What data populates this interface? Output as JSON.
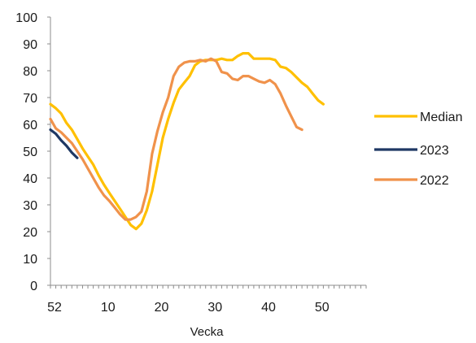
{
  "chart_data": {
    "type": "line",
    "title": "",
    "xlabel": "Vecka",
    "ylabel": "",
    "ylim": [
      0,
      100
    ],
    "yticks": [
      0,
      10,
      20,
      30,
      40,
      50,
      60,
      70,
      80,
      90,
      100
    ],
    "x_tick_labels": [
      "52",
      "10",
      "20",
      "30",
      "40",
      "50"
    ],
    "x_axis_note": "week index 0 = week 52, then weeks 1-52",
    "grid": false,
    "legend_position": "right",
    "series": [
      {
        "name": "Median",
        "color": "#FFC000",
        "values": [
          67.5,
          66,
          64,
          60.5,
          58,
          54.5,
          51,
          48,
          45,
          41,
          37.5,
          34.5,
          31.5,
          28.5,
          25.5,
          22.5,
          21,
          23,
          28,
          35,
          45,
          55,
          62,
          68,
          73,
          75.5,
          78,
          82,
          83.5,
          84,
          84,
          84,
          84.5,
          84,
          84,
          85.5,
          86.5,
          86.5,
          84.5,
          84.5,
          84.5,
          84.5,
          84,
          81.5,
          81,
          79.5,
          77.5,
          75.5,
          74,
          71.5,
          69,
          67.5
        ]
      },
      {
        "name": "2023",
        "color": "#1F3864",
        "values": [
          58,
          56.5,
          54,
          52,
          49.5,
          47.5
        ]
      },
      {
        "name": "2022",
        "color": "#F0924B",
        "values": [
          62,
          58.5,
          57,
          55,
          53,
          50,
          47,
          43.5,
          40,
          36.5,
          33.5,
          31.5,
          29,
          26.5,
          24.5,
          24.5,
          25.5,
          27.5,
          35,
          49,
          57.5,
          64.5,
          70,
          78,
          81.5,
          83,
          83.5,
          83.5,
          84,
          83.5,
          84.5,
          83.5,
          79.5,
          79,
          77,
          76.5,
          78,
          78,
          77,
          76,
          75.5,
          76.5,
          75,
          71.5,
          67,
          63,
          59,
          58
        ]
      }
    ]
  }
}
